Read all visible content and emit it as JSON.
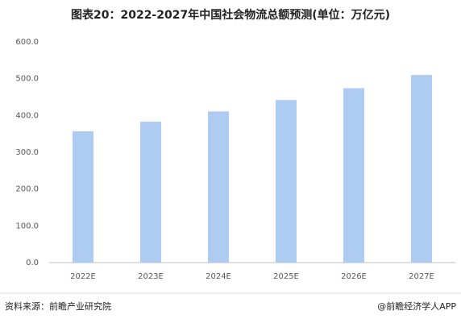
{
  "chart_data": {
    "type": "bar",
    "title": "图表20：2022-2027年中国社会物流总额预测(单位：万亿元)",
    "categories": [
      "2022E",
      "2023E",
      "2024E",
      "2025E",
      "2026E",
      "2027E"
    ],
    "values": [
      357,
      383,
      411,
      442,
      474,
      510
    ],
    "color": "#aecbf1",
    "ylim": [
      0,
      600
    ],
    "yticks": [
      {
        "value": 0,
        "label": "0.0"
      },
      {
        "value": 100,
        "label": "100.0"
      },
      {
        "value": 200,
        "label": "200.0"
      },
      {
        "value": 300,
        "label": "300.0"
      },
      {
        "value": 400,
        "label": "400.0"
      },
      {
        "value": 500,
        "label": "500.0"
      },
      {
        "value": 600,
        "label": "600.0"
      }
    ],
    "grid": false,
    "source": "资料来源：前瞻产业研究院",
    "credit": "@前瞻经济学人APP"
  }
}
